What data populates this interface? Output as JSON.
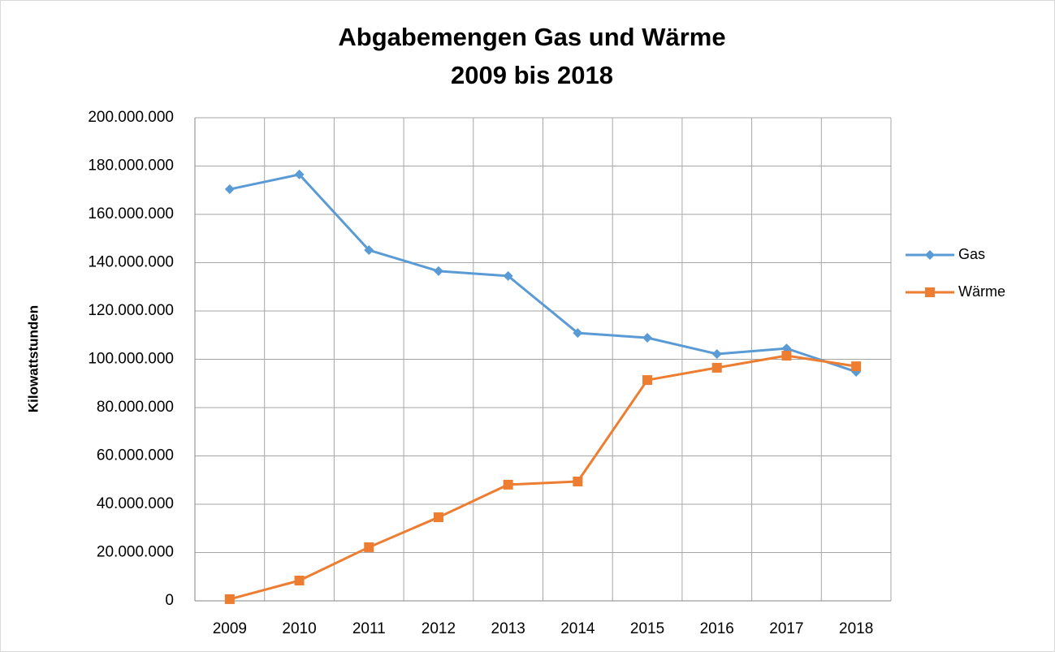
{
  "chart_data": {
    "type": "line",
    "title": [
      "Abgabemengen Gas und Wärme",
      "2009 bis 2018"
    ],
    "y_label": "Kilowattstunden",
    "categories": [
      "2009",
      "2010",
      "2011",
      "2012",
      "2013",
      "2014",
      "2015",
      "2016",
      "2017",
      "2018"
    ],
    "series": [
      {
        "name": "Gas",
        "color": "#5b9bd5",
        "marker": "diamond",
        "values": [
          170400000,
          176500000,
          145200000,
          136500000,
          134500000,
          110900000,
          108900000,
          102200000,
          104500000,
          94800000
        ]
      },
      {
        "name": "Wärme",
        "color": "#ed7d31",
        "marker": "square",
        "values": [
          700000,
          8400000,
          22200000,
          34600000,
          48100000,
          49400000,
          91400000,
          96500000,
          101500000,
          97100000
        ]
      }
    ],
    "ylim": [
      0,
      200000000
    ],
    "yticks": [
      0,
      {
        "value": 20000000,
        "label": "20.000.000"
      },
      {
        "value": 40000000,
        "label": "40.000.000"
      },
      {
        "value": 60000000,
        "label": "60.000.000"
      },
      {
        "value": 80000000,
        "label": "80.000.000"
      },
      {
        "value": 100000000,
        "label": "100.000.000"
      },
      {
        "value": 120000000,
        "label": "120.000.000"
      },
      {
        "value": 140000000,
        "label": "140.000.000"
      },
      {
        "value": 160000000,
        "label": "160.000.000"
      },
      {
        "value": 180000000,
        "label": "180.000.000"
      },
      {
        "value": 200000000,
        "label": "200.000.000"
      }
    ],
    "grid": true,
    "legend": "right"
  }
}
